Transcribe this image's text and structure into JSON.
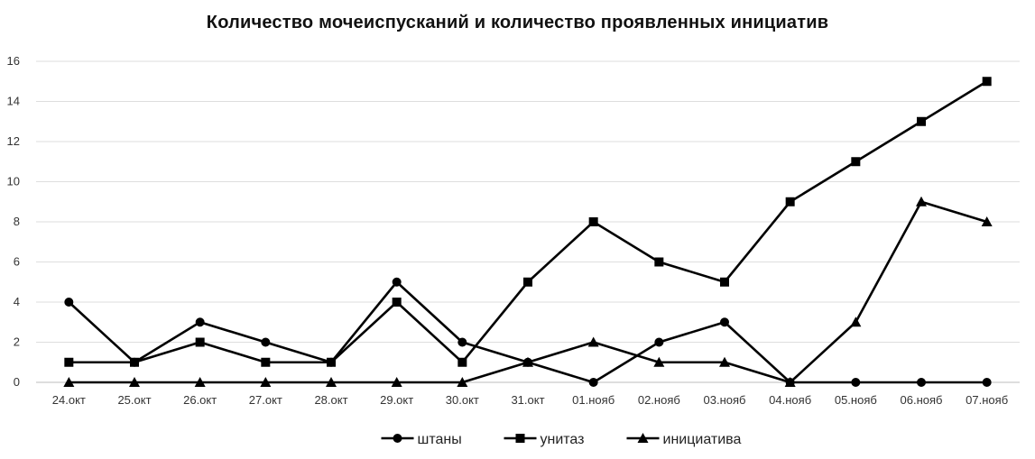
{
  "chart_data": {
    "type": "line",
    "title": "Количество мочеиспусканий и количество проявленных инициатив",
    "xlabel": "",
    "ylabel": "",
    "categories": [
      "24.окт",
      "25.окт",
      "26.окт",
      "27.окт",
      "28.окт",
      "29.окт",
      "30.окт",
      "31.окт",
      "01.нояб",
      "02.нояб",
      "03.нояб",
      "04.нояб",
      "05.нояб",
      "06.нояб",
      "07.нояб"
    ],
    "ylim": [
      0,
      16
    ],
    "yticks": [
      0,
      2,
      4,
      6,
      8,
      10,
      12,
      14,
      16
    ],
    "grid": true,
    "legend_position": "bottom",
    "series": [
      {
        "name": "штаны",
        "marker": "circle",
        "color": "#000000",
        "values": [
          4,
          1,
          3,
          2,
          1,
          5,
          2,
          1,
          0,
          2,
          3,
          0,
          0,
          0,
          0
        ]
      },
      {
        "name": "унитаз",
        "marker": "square",
        "color": "#000000",
        "values": [
          1,
          1,
          2,
          1,
          1,
          4,
          1,
          5,
          8,
          6,
          5,
          9,
          11,
          13,
          15
        ]
      },
      {
        "name": "инициатива",
        "marker": "triangle",
        "color": "#000000",
        "values": [
          0,
          0,
          0,
          0,
          0,
          0,
          0,
          1,
          2,
          1,
          1,
          0,
          3,
          9,
          8
        ]
      }
    ]
  }
}
